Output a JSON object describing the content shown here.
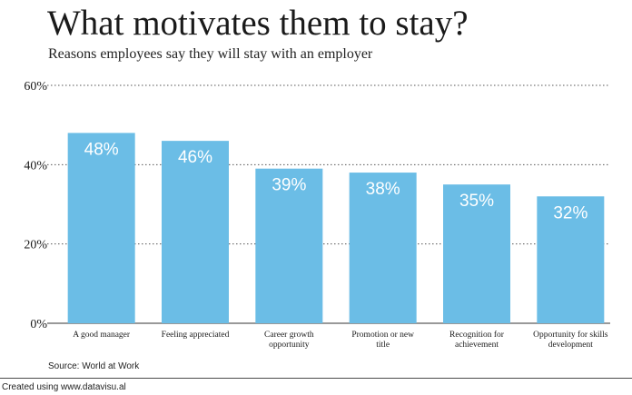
{
  "header": {
    "title": "What motivates them to stay?",
    "subtitle": "Reasons employees say they will stay with an employer"
  },
  "source": "Source: World at Work",
  "footer": {
    "credit": "Created using www.datavisu.al"
  },
  "chart_data": {
    "type": "bar",
    "title": "What motivates them to stay?",
    "subtitle": "Reasons employees say they will stay with an employer",
    "xlabel": "",
    "ylabel": "",
    "categories": [
      [
        "A good manager"
      ],
      [
        "Feeling appreciated"
      ],
      [
        "Career growth",
        "opportunity"
      ],
      [
        "Promotion or new",
        "title"
      ],
      [
        "Recognition for",
        "achievement"
      ],
      [
        "Opportunity for skills",
        "development"
      ]
    ],
    "values": [
      48,
      46,
      39,
      38,
      35,
      32
    ],
    "value_labels": [
      "48%",
      "46%",
      "39%",
      "38%",
      "35%",
      "32%"
    ],
    "ylim": [
      0,
      60
    ],
    "yticks": [
      0,
      20,
      40,
      60
    ],
    "ytick_labels": [
      "0%",
      "20%",
      "40%",
      "60%"
    ],
    "grid": "dotted-horizontal",
    "bar_color": "#6bbde6",
    "label_color": "#ffffff"
  }
}
